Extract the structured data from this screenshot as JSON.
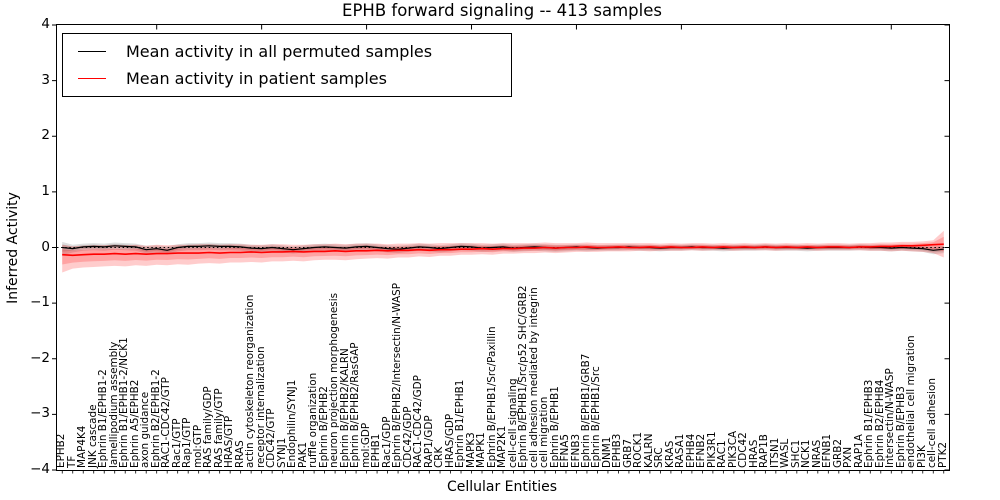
{
  "chart_data": {
    "type": "line",
    "title": "EPHB forward signaling -- 413 samples",
    "xlabel": "Cellular Entities",
    "ylabel": "Inferred Activity",
    "ylim": [
      -4,
      4
    ],
    "yticks": [
      4,
      3,
      2,
      1,
      0,
      -1,
      -2,
      -3,
      -4
    ],
    "grid": false,
    "zero_reference_line": 0,
    "legend_position": "upper left",
    "x_major_tick_every": 10,
    "categories": [
      "EPHB2",
      "TF",
      "MAP4K4",
      "JNK cascade",
      "Ephrin B1/EPHB1-2",
      "lamellipodium assembly",
      "Ephrin B1/EPHB1-2/NCK1",
      "Ephrin A5/EPHB2",
      "axon guidance",
      "Ephrin B2/EPHB1-2",
      "RAC1-CDC42/GTP",
      "Rac1/GTP",
      "Rap1/GTP",
      "mol:GTP",
      "RAS family/GDP",
      "RAS family/GTP",
      "HRAS/GTP",
      "RRAS",
      "actin cytoskeleton reorganization",
      "receptor internalization",
      "CDC42/GTP",
      "SYNJ1",
      "Endophilin/SYNJ1",
      "PAK1",
      "ruffle organization",
      "Ephrin B/EPHB2",
      "neuron projection morphogenesis",
      "Ephrin B/EPHB2/KALRN",
      "Ephrin B/EPHB2/RasGAP",
      "mol:GDP",
      "EPHB1",
      "Rac1/GDP",
      "Ephrin B/EPHB2/Intersectin/N-WASP",
      "CDC42/GDP",
      "RAC1-CDC42/GDP",
      "RAP1/GDP",
      "CRK",
      "HRAS/GDP",
      "Ephrin B1/EPHB1",
      "MAPK3",
      "MAPK1",
      "Ephrin B/EPHB1/Src/Paxillin",
      "MAP2K1",
      "cell-cell signaling",
      "Ephrin B/EPHB1/Src/p52 SHC/GRB2",
      "cell adhesion mediated by integrin",
      "cell migration",
      "Ephrin B/EPHB1",
      "EFNA5",
      "EFNB3",
      "Ephrin B/EPHB1/GRB7",
      "Ephrin B/EPHB1/Src",
      "DNM1",
      "EPHB3",
      "GRB7",
      "ROCK1",
      "KALRN",
      "SRC",
      "KRAS",
      "RASA1",
      "EPHB4",
      "EFNB2",
      "PIK3R1",
      "RAC1",
      "PIK3CA",
      "CDC42",
      "HRAS",
      "RAP1B",
      "ITSN1",
      "WASL",
      "SHC1",
      "NCK1",
      "NRAS",
      "EFNB1",
      "GRB2",
      "PXN",
      "RAP1A",
      "Ephrin B1/EPHB3",
      "Ephrin B2/EPHB4",
      "Intersectin/N-WASP",
      "Ephrin B/EPHB3",
      "endothelial cell migration",
      "PI3K",
      "cell-cell adhesion",
      "PTK2"
    ],
    "series": [
      {
        "name": "Mean activity in all permuted samples",
        "color": "#000000",
        "values": [
          0.0,
          -0.02,
          0.01,
          0.02,
          0.01,
          0.03,
          0.02,
          0.01,
          -0.04,
          -0.02,
          -0.05,
          0.0,
          0.02,
          0.02,
          0.03,
          0.02,
          0.02,
          0.01,
          -0.01,
          -0.02,
          0.0,
          -0.02,
          -0.04,
          -0.02,
          0.0,
          0.01,
          0.0,
          -0.01,
          0.01,
          0.02,
          0.0,
          -0.02,
          -0.03,
          -0.01,
          0.01,
          0.0,
          -0.02,
          0.0,
          0.02,
          0.01,
          -0.01,
          0.0,
          0.01,
          -0.01,
          0.0,
          0.01,
          0.0,
          -0.01,
          0.0,
          0.01,
          0.0,
          -0.01,
          0.0,
          0.0,
          0.01,
          0.0,
          0.0,
          -0.01,
          0.0,
          0.0,
          0.01,
          0.0,
          0.0,
          -0.01,
          0.0,
          0.0,
          0.0,
          0.01,
          0.0,
          0.0,
          0.0,
          -0.01,
          0.0,
          0.0,
          0.0,
          0.0,
          0.01,
          0.0,
          0.0,
          -0.01,
          0.0,
          -0.01,
          -0.02,
          -0.05,
          -0.03
        ],
        "band": {
          "color": "#808080",
          "upper": [
            0.1,
            0.05,
            0.07,
            0.08,
            0.07,
            0.09,
            0.08,
            0.07,
            0.03,
            0.04,
            0.02,
            0.06,
            0.08,
            0.08,
            0.09,
            0.08,
            0.08,
            0.07,
            0.05,
            0.04,
            0.06,
            0.04,
            0.02,
            0.04,
            0.06,
            0.07,
            0.06,
            0.05,
            0.07,
            0.08,
            0.06,
            0.04,
            0.03,
            0.05,
            0.07,
            0.06,
            0.04,
            0.06,
            0.08,
            0.07,
            0.05,
            0.06,
            0.07,
            0.05,
            0.06,
            0.07,
            0.06,
            0.05,
            0.05,
            0.06,
            0.05,
            0.04,
            0.05,
            0.05,
            0.06,
            0.05,
            0.05,
            0.04,
            0.05,
            0.05,
            0.06,
            0.05,
            0.05,
            0.04,
            0.05,
            0.05,
            0.05,
            0.06,
            0.05,
            0.05,
            0.05,
            0.04,
            0.05,
            0.05,
            0.05,
            0.05,
            0.06,
            0.05,
            0.05,
            0.04,
            0.05,
            0.04,
            0.03,
            0.01,
            0.03
          ],
          "lower": [
            -0.14,
            -0.09,
            -0.06,
            -0.05,
            -0.06,
            -0.04,
            -0.05,
            -0.06,
            -0.11,
            -0.09,
            -0.12,
            -0.07,
            -0.05,
            -0.05,
            -0.04,
            -0.05,
            -0.05,
            -0.06,
            -0.08,
            -0.09,
            -0.07,
            -0.09,
            -0.11,
            -0.09,
            -0.07,
            -0.06,
            -0.07,
            -0.08,
            -0.06,
            -0.05,
            -0.07,
            -0.09,
            -0.1,
            -0.08,
            -0.06,
            -0.07,
            -0.09,
            -0.07,
            -0.05,
            -0.06,
            -0.08,
            -0.07,
            -0.06,
            -0.08,
            -0.07,
            -0.06,
            -0.07,
            -0.08,
            -0.07,
            -0.06,
            -0.07,
            -0.06,
            -0.06,
            -0.06,
            -0.05,
            -0.06,
            -0.06,
            -0.07,
            -0.06,
            -0.06,
            -0.05,
            -0.06,
            -0.06,
            -0.07,
            -0.06,
            -0.06,
            -0.06,
            -0.05,
            -0.06,
            -0.06,
            -0.06,
            -0.07,
            -0.06,
            -0.06,
            -0.06,
            -0.06,
            -0.05,
            -0.06,
            -0.06,
            -0.07,
            -0.06,
            -0.07,
            -0.08,
            -0.12,
            -0.1
          ]
        }
      },
      {
        "name": "Mean activity in patient samples",
        "color": "#ff0000",
        "values": [
          -0.13,
          -0.14,
          -0.13,
          -0.12,
          -0.12,
          -0.11,
          -0.12,
          -0.11,
          -0.12,
          -0.11,
          -0.11,
          -0.1,
          -0.1,
          -0.1,
          -0.09,
          -0.1,
          -0.09,
          -0.09,
          -0.08,
          -0.09,
          -0.08,
          -0.08,
          -0.07,
          -0.08,
          -0.07,
          -0.07,
          -0.06,
          -0.07,
          -0.06,
          -0.06,
          -0.05,
          -0.06,
          -0.05,
          -0.05,
          -0.04,
          -0.05,
          -0.04,
          -0.04,
          -0.03,
          -0.03,
          -0.02,
          -0.03,
          -0.02,
          -0.02,
          -0.01,
          -0.01,
          0.0,
          -0.01,
          0.0,
          0.0,
          0.01,
          0.0,
          0.0,
          0.01,
          0.0,
          0.0,
          0.01,
          0.0,
          0.01,
          0.0,
          0.0,
          0.01,
          0.0,
          0.01,
          0.0,
          0.01,
          0.0,
          0.01,
          0.0,
          0.01,
          0.0,
          0.01,
          0.0,
          0.01,
          0.01,
          0.0,
          0.01,
          0.01,
          0.02,
          0.02,
          0.03,
          0.03,
          0.04,
          0.05,
          0.06
        ],
        "band": {
          "color": "#ff0000",
          "upper": [
            0.05,
            0.02,
            0.03,
            0.04,
            0.04,
            0.05,
            0.04,
            0.05,
            0.03,
            0.05,
            0.04,
            0.05,
            0.05,
            0.06,
            0.06,
            0.05,
            0.06,
            0.06,
            0.05,
            0.05,
            0.06,
            0.06,
            0.05,
            0.05,
            0.06,
            0.06,
            0.07,
            0.06,
            0.07,
            0.07,
            0.07,
            0.06,
            0.07,
            0.07,
            0.08,
            0.07,
            0.08,
            0.08,
            0.08,
            0.08,
            0.08,
            0.07,
            0.08,
            0.08,
            0.08,
            0.08,
            0.09,
            0.08,
            0.08,
            0.08,
            0.09,
            0.08,
            0.08,
            0.08,
            0.08,
            0.08,
            0.08,
            0.07,
            0.08,
            0.07,
            0.08,
            0.08,
            0.07,
            0.08,
            0.07,
            0.08,
            0.07,
            0.08,
            0.07,
            0.08,
            0.07,
            0.08,
            0.07,
            0.08,
            0.08,
            0.07,
            0.08,
            0.08,
            0.09,
            0.09,
            0.1,
            0.1,
            0.11,
            0.13,
            0.3
          ],
          "lower": [
            -0.45,
            -0.38,
            -0.36,
            -0.35,
            -0.34,
            -0.33,
            -0.34,
            -0.32,
            -0.33,
            -0.31,
            -0.32,
            -0.3,
            -0.31,
            -0.29,
            -0.28,
            -0.29,
            -0.27,
            -0.27,
            -0.26,
            -0.27,
            -0.25,
            -0.25,
            -0.24,
            -0.25,
            -0.23,
            -0.22,
            -0.22,
            -0.23,
            -0.21,
            -0.2,
            -0.19,
            -0.2,
            -0.18,
            -0.18,
            -0.16,
            -0.17,
            -0.15,
            -0.15,
            -0.13,
            -0.13,
            -0.12,
            -0.13,
            -0.11,
            -0.11,
            -0.1,
            -0.1,
            -0.09,
            -0.1,
            -0.09,
            -0.08,
            -0.08,
            -0.08,
            -0.07,
            -0.07,
            -0.07,
            -0.06,
            -0.07,
            -0.06,
            -0.06,
            -0.06,
            -0.05,
            -0.06,
            -0.05,
            -0.05,
            -0.06,
            -0.05,
            -0.05,
            -0.05,
            -0.06,
            -0.05,
            -0.05,
            -0.05,
            -0.06,
            -0.05,
            -0.05,
            -0.05,
            -0.05,
            -0.06,
            -0.06,
            -0.07,
            -0.06,
            -0.07,
            -0.08,
            -0.1,
            -0.18
          ]
        }
      }
    ]
  }
}
